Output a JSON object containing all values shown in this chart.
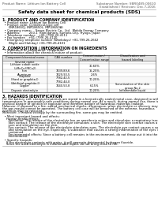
{
  "title": "Safety data sheet for chemical products (SDS)",
  "header_left": "Product Name: Lithium Ion Battery Cell",
  "header_right_line1": "Substance Number: SBR0489-00610",
  "header_right_line2": "Established / Revision: Dec.7,2016",
  "bg_color": "#ffffff",
  "text_color": "#000000",
  "section1_title": "1. PRODUCT AND COMPANY IDENTIFICATION",
  "section1_lines": [
    "  • Product name: Lithium Ion Battery Cell",
    "  • Product code: Cylindrical-type cell",
    "      (INR18650J, INR18650L, INR18650A)",
    "  • Company name:    Sanya Electric Co., Ltd.  Mobile Energy Company",
    "  • Address:         200-1  Kamidahara, Sumoto-City, Hyogo, Japan",
    "  • Telephone number:   +81-(799)-20-4111",
    "  • Fax number:   +81-(799)-26-4120",
    "  • Emergency telephone number (Weekdays) +81-799-26-2662",
    "      (Night and Holiday) +81-799-26-4101"
  ],
  "section2_title": "2. COMPOSITION / INFORMATION ON INGREDIENTS",
  "section2_lines": [
    "  • Substance or preparation: Preparation",
    "  • Information about the chemical nature of product:"
  ],
  "table_headers": [
    "Component/chemical name",
    "CAS number",
    "Concentration /\nConcentration range",
    "Classification and\nhazard labeling"
  ],
  "table_rows": [
    [
      "Several name",
      "-",
      "-",
      "-"
    ],
    [
      "Lithium cobalt oxide\n(LiMnCo3/RCo2)",
      "-",
      "30-60%",
      "-"
    ],
    [
      "Iron",
      "7439-89-6",
      "15-25%",
      "-"
    ],
    [
      "Aluminum",
      "7429-90-5",
      "2-6%",
      "-"
    ],
    [
      "Graphite\n(Hard or graphite-I)\n(Artificial graphite-I)",
      "7782-42-5\n7782-44-0",
      "10-25%",
      "-"
    ],
    [
      "Copper",
      "7440-50-8",
      "6-15%",
      "Sensitization of the skin\ngroup No.2"
    ],
    [
      "Organic electrolyte",
      "-",
      "10-20%",
      "Inflammable liquid"
    ]
  ],
  "section3_title": "3. HAZARDS IDENTIFICATION",
  "section3_para1": [
    "For the battery cell, chemical materials are stored in a hermetically sealed metal case, designed to withstand",
    "temperatures in presumably-safe conditions during normal use. As a result, during normal use, there is no",
    "physical danger of ignition or explosion and therefore danger of hazardous materials leakage.",
    "However, if exposed to a fire, added mechanical shocks, decompose, when electrolyte or mercury may cause,",
    "the gas maybe cannot be operated. The battery cell case will be breached of the extreme, hazardous",
    "materials may be released.",
    "Moreover, if heated strongly by the surrounding fire, some gas may be emitted."
  ],
  "section3_para2": [
    "  • Most important hazard and effects:",
    "    Human health effects:",
    "      Inhalation: The release of the electrolyte has an anesthesia action and stimulates a respiratory tract.",
    "      Skin contact: The release of the electrolyte stimulates a skin. The electrolyte skin contact causes a",
    "      sore and stimulation on the skin.",
    "      Eye contact: The release of the electrolyte stimulates eyes. The electrolyte eye contact causes a sore",
    "      and stimulation on the eye. Especially, a substance that causes a strong inflammation of the eyes is",
    "      contained.",
    "      Environmental effects: Since a battery cell remains in the environment, do not throw out it into the",
    "      environment."
  ],
  "section3_para3": [
    "  • Specific hazards:",
    "    If the electrolyte contacts with water, it will generate detrimental hydrogen fluoride.",
    "    Since the used electrolyte is inflammable liquid, do not bring close to fire."
  ]
}
